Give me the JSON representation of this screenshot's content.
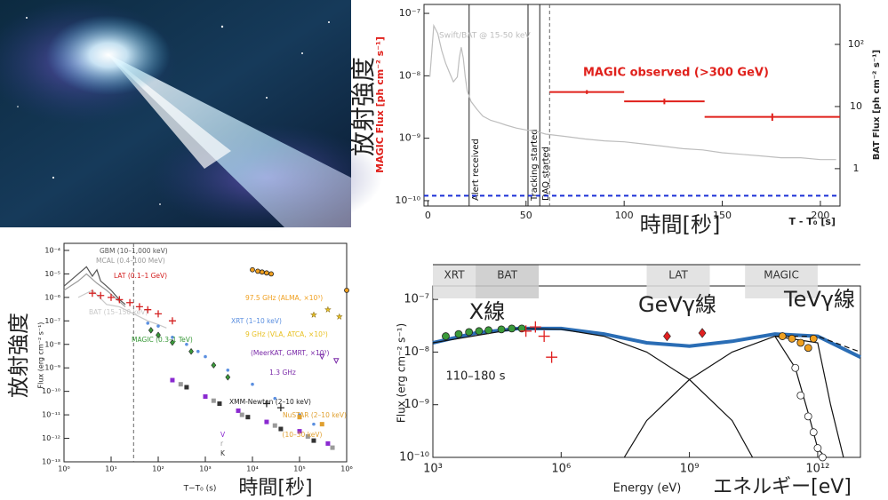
{
  "chart_data": [
    {
      "type": "line",
      "xlim": [
        -2,
        210
      ],
      "xticks": [
        0,
        50,
        100,
        150,
        200
      ],
      "yscale": "log",
      "ylim": [
        8.2e-11,
        1.39e-07
      ],
      "yticks": [
        {
          "value": 1e-10,
          "label": "10⁻¹⁰"
        },
        {
          "value": 1e-09,
          "label": "10⁻⁹"
        },
        {
          "value": 1e-08,
          "label": "10⁻⁸"
        },
        {
          "value": 1e-07,
          "label": "10⁻⁷"
        }
      ],
      "y2scale": "log",
      "y2lim": [
        0.25,
        440
      ],
      "y2ticks": [
        1,
        10,
        {
          "value": 100,
          "label": "10²"
        }
      ],
      "xlabel": "T - T₀ [s]",
      "ylabel": "MAGIC Flux [ph cm⁻² s⁻¹]",
      "ylabel_color": "#e0201b",
      "y2label": "BAT Flux [ph cm⁻² s⁻¹]",
      "series": [
        {
          "name": "Swift/BAT @ 15-50 keV",
          "color": "#bdbdbd",
          "axis": "y2",
          "marker": "line",
          "x": [
            1,
            3,
            5,
            7,
            9,
            11,
            13,
            15,
            16,
            17,
            18,
            19,
            20,
            22,
            25,
            28,
            32,
            36,
            40,
            45,
            50,
            55,
            60,
            70,
            80,
            90,
            100,
            110,
            120,
            130,
            140,
            150,
            160,
            170,
            180,
            190,
            200,
            208
          ],
          "values": [
            30,
            200,
            150,
            80,
            50,
            35,
            25,
            30,
            60,
            90,
            60,
            30,
            18,
            12,
            9,
            7,
            6,
            5.5,
            5,
            4.5,
            4.2,
            4,
            3.6,
            3.3,
            3,
            2.8,
            2.7,
            2.5,
            2.3,
            2.1,
            2,
            1.8,
            1.7,
            1.6,
            1.5,
            1.5,
            1.4,
            1.4
          ]
        },
        {
          "name": "MAGIC observed (>300 GeV)",
          "color": "#e0201b",
          "marker": "errorbar",
          "x": [
            81,
            120.5,
            175.5
          ],
          "xerr": [
            19,
            20.5,
            34.5
          ],
          "values": [
            5.5e-09,
            3.9e-09,
            2.2e-09
          ],
          "yerr": [
            4e-10,
            4e-10,
            3e-10
          ]
        }
      ],
      "events": [
        {
          "label": "Alert received",
          "x": 21
        },
        {
          "label": "Tracking started",
          "x": 51
        },
        {
          "label": "DAQ started",
          "x": 57
        },
        {
          "x": 62,
          "dash": true
        }
      ],
      "hlines": [
        {
          "y": 1.2e-10,
          "color": "#1a2fd6",
          "dash": true
        }
      ],
      "annotations": [
        "放射強度",
        "時間[秒]"
      ]
    },
    {
      "type": "line",
      "xscale": "log",
      "xlim": [
        1,
        1000000
      ],
      "xticks": [
        {
          "value": 1,
          "label": "10⁰"
        },
        {
          "value": 10,
          "label": "10¹"
        },
        {
          "value": 100,
          "label": "10²"
        },
        {
          "value": 1000,
          "label": "10³"
        },
        {
          "value": 10000,
          "label": "10⁴"
        },
        {
          "value": 100000,
          "label": "10⁵"
        },
        {
          "value": 1000000,
          "label": "10⁶"
        }
      ],
      "yscale": "log",
      "ylim": [
        1e-13,
        0.0002
      ],
      "yticks": [
        {
          "value": 1e-13,
          "label": "10⁻¹³"
        },
        {
          "value": 1e-12,
          "label": "10⁻¹²"
        },
        {
          "value": 1e-11,
          "label": "10⁻¹¹"
        },
        {
          "value": 1e-10,
          "label": "10⁻¹⁰"
        },
        {
          "value": 1e-09,
          "label": "10⁻⁹"
        },
        {
          "value": 1e-08,
          "label": "10⁻⁸"
        },
        {
          "value": 1e-07,
          "label": "10⁻⁷"
        },
        {
          "value": 1e-06,
          "label": "10⁻⁶"
        },
        {
          "value": 1e-05,
          "label": "10⁻⁵"
        },
        {
          "value": 0.0001,
          "label": "10⁻⁴"
        }
      ],
      "xlabel": "T−T₀ (s)",
      "ylabel": "Flux (erg cm⁻² s⁻¹)",
      "series": [
        {
          "name": "GBM (10–1,000 keV)",
          "color": "#555555",
          "marker": "line",
          "x": [
            1,
            2,
            3,
            4,
            5,
            6,
            8,
            10,
            15,
            20
          ],
          "values": [
            3e-06,
            1e-05,
            2e-05,
            8e-06,
            1.5e-05,
            5e-06,
            3e-06,
            2e-06,
            8e-07,
            5e-07
          ]
        },
        {
          "name": "MCAL (0.4–100 MeV)",
          "color": "#9a9a9a",
          "marker": "line",
          "x": [
            1,
            2,
            3,
            5,
            8,
            12,
            20
          ],
          "values": [
            2e-06,
            5e-06,
            1e-05,
            4e-06,
            2e-06,
            1e-06,
            4e-07
          ]
        },
        {
          "name": "BAT (15–150 keV)",
          "color": "#c8c8c8",
          "marker": "line",
          "x": [
            2,
            4,
            8,
            15,
            30,
            60,
            100,
            150
          ],
          "values": [
            1e-06,
            2e-06,
            5e-07,
            4e-07,
            2e-07,
            1e-07,
            7e-08,
            5e-08
          ]
        },
        {
          "name": "LAT (0.1–1 GeV)",
          "color": "#d42020",
          "marker": "cross",
          "x": [
            4,
            6,
            10,
            15,
            25,
            40,
            60,
            100,
            200
          ],
          "values": [
            1.5e-06,
            1.2e-06,
            1e-06,
            8e-07,
            6e-07,
            4e-07,
            3e-07,
            2e-07,
            1e-07
          ]
        },
        {
          "name": "XRT (1–10 keV)",
          "color": "#5b8fe0",
          "marker": "dot",
          "x": [
            60,
            100,
            200,
            400,
            700,
            1000,
            3000,
            10000,
            30000,
            100000,
            200000
          ],
          "values": [
            8e-08,
            6e-08,
            2e-08,
            1e-08,
            5e-09,
            3e-09,
            8e-10,
            2e-10,
            5e-11,
            1e-11,
            4e-12
          ]
        },
        {
          "name": "MAGIC (0.3–1 TeV)",
          "color": "#3a9a3a",
          "marker": "diamond",
          "x": [
            70,
            100,
            200,
            500,
            1500,
            3000
          ],
          "values": [
            4e-08,
            2.5e-08,
            1.2e-08,
            5e-09,
            1.3e-09,
            4e-10
          ]
        },
        {
          "name": "97.5 GHz (ALMA, ×10³)",
          "color": "#f0a020",
          "marker": "circle",
          "x": [
            10000,
            13000,
            16000,
            20000,
            25000,
            1000000
          ],
          "values": [
            1.5e-05,
            1.3e-05,
            1.2e-05,
            1.1e-05,
            1e-05,
            2e-06
          ]
        },
        {
          "name": "9 GHz (VLA, ATCA, ×10³)",
          "color": "#e8c020",
          "marker": "star",
          "x": [
            200000,
            400000,
            700000
          ],
          "values": [
            1.8e-07,
            3e-07,
            1.5e-07
          ]
        },
        {
          "name": "(MeerKAT, GMRT, ×10³)",
          "color": "#7a2aa8",
          "marker": "triangle",
          "x": [
            300000,
            600000
          ],
          "values": [
            3e-09,
            2e-09
          ]
        },
        {
          "name": "XMM-Newton (2–10 keV)",
          "color": "#222222",
          "marker": "cross",
          "x": [
            20000,
            40000
          ],
          "values": [
            3e-11,
            2e-11
          ]
        },
        {
          "name": "NuSTAR (2–10 keV)",
          "color": "#e0a030",
          "marker": "square",
          "x": [
            100000,
            300000
          ],
          "values": [
            8e-12,
            4e-12
          ]
        },
        {
          "name": "V",
          "color": "#8a2ad0",
          "marker": "square",
          "x": [
            200,
            1000,
            5000,
            20000,
            100000,
            400000
          ],
          "values": [
            3e-10,
            6e-11,
            1.5e-11,
            5e-12,
            2e-12,
            6e-13
          ]
        },
        {
          "name": "r",
          "color": "#9a9a9a",
          "marker": "square",
          "x": [
            300,
            1500,
            6000,
            30000,
            150000,
            500000
          ],
          "values": [
            2e-10,
            4e-11,
            1e-11,
            3.5e-12,
            1.2e-12,
            4e-13
          ]
        },
        {
          "name": "K",
          "color": "#333333",
          "marker": "square",
          "x": [
            400,
            2000,
            8000,
            40000,
            200000
          ],
          "values": [
            1.5e-10,
            3e-11,
            8e-12,
            2.5e-12,
            8e-13
          ]
        }
      ],
      "events": [
        {
          "x": 30,
          "dash": true
        }
      ],
      "annotations": [
        "放射強度",
        "時間[秒]",
        "1.3 GHz",
        "(10–30 keV)"
      ]
    },
    {
      "type": "line",
      "xscale": "log",
      "xlim": [
        1000,
        10000000000000.0
      ],
      "xticks": [
        {
          "value": 1000,
          "label": "10³"
        },
        {
          "value": 1000000,
          "label": "10⁶"
        },
        {
          "value": 1000000000.0,
          "label": "10⁹"
        },
        {
          "value": 1000000000000.0,
          "label": "10¹²"
        }
      ],
      "yscale": "log",
      "ylim": [
        1e-10,
        1.8e-07
      ],
      "yticks": [
        {
          "value": 1e-10,
          "label": "10⁻¹⁰"
        },
        {
          "value": 1e-09,
          "label": "10⁻⁹"
        },
        {
          "value": 1e-08,
          "label": "10⁻⁸"
        },
        {
          "value": 1e-07,
          "label": "10⁻⁷"
        }
      ],
      "xlabel": "Energy (eV)",
      "ylabel": "Flux (erg cm⁻² s⁻¹)",
      "bands": [
        {
          "label": "XRT",
          "range": [
            1000,
            10000
          ]
        },
        {
          "label": "BAT",
          "range": [
            10000,
            300000
          ]
        },
        {
          "label": "LAT",
          "range": [
            100000000.0,
            3000000000.0
          ]
        },
        {
          "label": "MAGIC",
          "range": [
            20000000000.0,
            1000000000000.0
          ]
        }
      ],
      "series": [
        {
          "color": "#2a6db5",
          "marker": "line",
          "linewidth": 4,
          "x": [
            1000,
            10000,
            100000,
            1000000,
            10000000.0,
            100000000.0,
            1000000000.0,
            10000000000.0,
            100000000000.0,
            1000000000000.0,
            10000000000000.0
          ],
          "values": [
            1.5e-08,
            2.3e-08,
            2.8e-08,
            2.8e-08,
            2.2e-08,
            1.5e-08,
            1.3e-08,
            1.6e-08,
            2.2e-08,
            2e-08,
            8e-09
          ]
        },
        {
          "color": "#111111",
          "marker": "line",
          "linewidth": 1.2,
          "x": [
            1000,
            100000,
            1000000,
            10000000.0,
            100000000.0,
            1000000000.0,
            10000000000.0,
            30000000000.0
          ],
          "values": [
            1.5e-08,
            2.8e-08,
            2.7e-08,
            2e-08,
            1e-08,
            3e-09,
            5e-10,
            1e-10
          ]
        },
        {
          "color": "#111111",
          "marker": "line",
          "linewidth": 1.2,
          "x": [
            30000000.0,
            100000000.0,
            1000000000.0,
            10000000000.0,
            100000000000.0,
            1000000000000.0,
            2000000000000.0,
            4000000000000.0
          ],
          "values": [
            1e-10,
            5e-10,
            3e-09,
            1e-08,
            2e-08,
            1.5e-08,
            1e-09,
            1e-10
          ]
        },
        {
          "color": "#111111",
          "marker": "line",
          "linewidth": 1.2,
          "dash": true,
          "x": [
            100000000000.0,
            1000000000000.0,
            10000000000000.0
          ],
          "values": [
            2e-08,
            2e-08,
            1e-08
          ]
        },
        {
          "color": "#111111",
          "marker": "line",
          "linewidth": 1.2,
          "x": [
            100000000000.0,
            300000000000.0,
            600000000000.0,
            1000000000000.0,
            1500000000000.0
          ],
          "values": [
            2e-08,
            5e-09,
            7e-10,
            1.5e-10,
            1e-10
          ]
        },
        {
          "color": "#3a9a3a",
          "marker": "circle",
          "x": [
            2000,
            4000,
            7000,
            12000,
            20000,
            40000,
            70000,
            120000
          ],
          "values": [
            2e-08,
            2.2e-08,
            2.4e-08,
            2.5e-08,
            2.6e-08,
            2.7e-08,
            2.8e-08,
            2.8e-08
          ]
        },
        {
          "color": "#e02020",
          "marker": "cross",
          "x": [
            150000,
            250000,
            400000,
            600000
          ],
          "values": [
            2.5e-08,
            3e-08,
            2e-08,
            8e-09
          ]
        },
        {
          "color": "#e02020",
          "marker": "diamond",
          "x": [
            300000000.0,
            2000000000.0
          ],
          "values": [
            2e-08,
            2.3e-08
          ]
        },
        {
          "color": "#f0a020",
          "marker": "circle",
          "x": [
            150000000000.0,
            250000000000.0,
            400000000000.0,
            600000000000.0,
            800000000000.0
          ],
          "values": [
            2e-08,
            1.8e-08,
            1.5e-08,
            1.2e-08,
            1.8e-08
          ]
        },
        {
          "color": "#ffffff",
          "marker": "circle",
          "x": [
            300000000000.0,
            400000000000.0,
            600000000000.0,
            800000000000.0,
            1000000000000.0,
            1300000000000.0
          ],
          "values": [
            5e-09,
            1.5e-09,
            6e-10,
            3e-10,
            1.5e-10,
            1e-10
          ]
        }
      ],
      "annotations": [
        "X線",
        "GeVγ線",
        "TeVγ線",
        "110–180 s",
        "エネルギー[eV]"
      ]
    }
  ]
}
